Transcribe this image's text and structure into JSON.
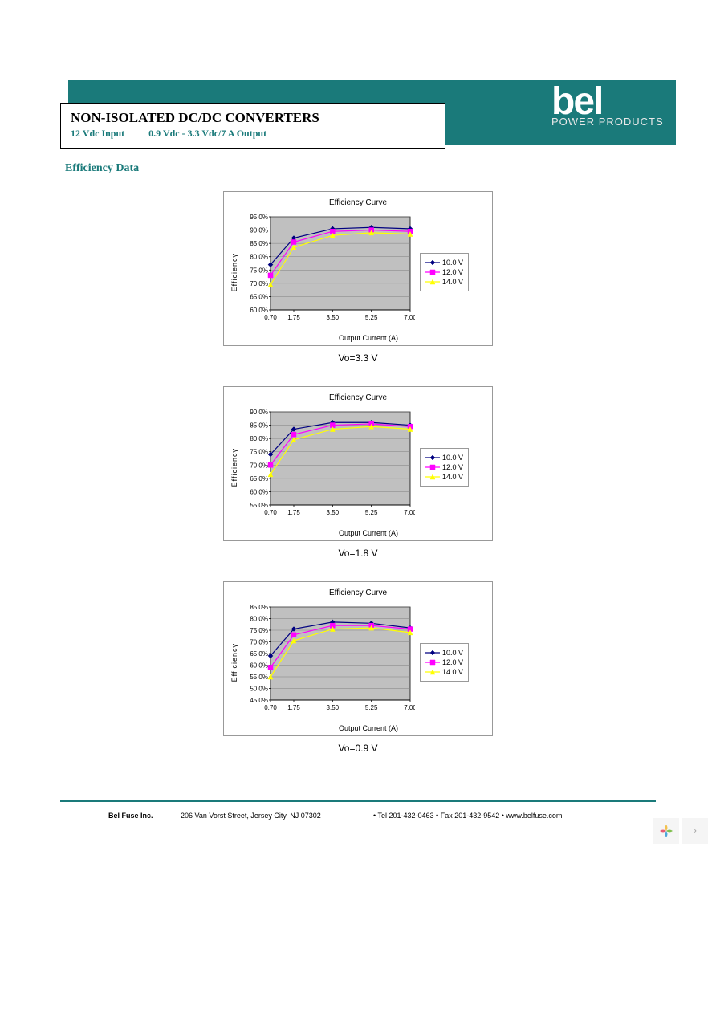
{
  "header": {
    "title": "NON-ISOLATED DC/DC CONVERTERS",
    "subtitle_left": "12 Vdc Input",
    "subtitle_right": "0.9 Vdc - 3.3 Vdc/7 A Output",
    "banner_color": "#1a7a7a",
    "logo_brand": "bel",
    "logo_tagline": "POWER PRODUCTS"
  },
  "section_heading": "Efficiency Data",
  "chart_common": {
    "title": "Efficiency Curve",
    "xlabel": "Output Current (A)",
    "ylabel": "Efficiency",
    "x_ticks": [
      "0.70",
      "1.75",
      "3.50",
      "5.25",
      "7.00"
    ],
    "x_values": [
      0.7,
      1.75,
      3.5,
      5.25,
      7.0
    ],
    "plot_bg": "#c0c0c0",
    "grid_color": "#808080",
    "axis_color": "#000000",
    "tick_fontsize": 8,
    "title_fontsize": 10,
    "legend": [
      {
        "label": "10.0 V",
        "color": "#000080",
        "line": "#000080",
        "marker": "diamond"
      },
      {
        "label": "12.0 V",
        "color": "#ff00ff",
        "line": "#ff00ff",
        "marker": "square"
      },
      {
        "label": "14.0 V",
        "color": "#ffff00",
        "line": "#ffff00",
        "marker": "triangle"
      }
    ]
  },
  "charts": [
    {
      "caption": "Vo=3.3 V",
      "ymin": 60,
      "ymax": 95,
      "ystep": 5,
      "y_ticks": [
        "60.0%",
        "65.0%",
        "70.0%",
        "75.0%",
        "80.0%",
        "85.0%",
        "90.0%",
        "95.0%"
      ],
      "series": [
        {
          "key": "10.0 V",
          "values": [
            77.0,
            87.0,
            90.5,
            91.0,
            90.5
          ]
        },
        {
          "key": "12.0 V",
          "values": [
            73.0,
            85.5,
            89.5,
            90.0,
            89.5
          ]
        },
        {
          "key": "14.0 V",
          "values": [
            69.5,
            83.5,
            88.0,
            89.0,
            88.5
          ]
        }
      ]
    },
    {
      "caption": "Vo=1.8 V",
      "ymin": 55,
      "ymax": 90,
      "ystep": 5,
      "y_ticks": [
        "55.0%",
        "60.0%",
        "65.0%",
        "70.0%",
        "75.0%",
        "80.0%",
        "85.0%",
        "90.0%"
      ],
      "series": [
        {
          "key": "10.0 V",
          "values": [
            74.0,
            83.5,
            86.0,
            86.0,
            85.0
          ]
        },
        {
          "key": "12.0 V",
          "values": [
            70.0,
            81.5,
            85.0,
            85.5,
            84.5
          ]
        },
        {
          "key": "14.0 V",
          "values": [
            66.5,
            79.5,
            83.5,
            84.5,
            83.5
          ]
        }
      ]
    },
    {
      "caption": "Vo=0.9 V",
      "ymin": 45,
      "ymax": 85,
      "ystep": 5,
      "y_ticks": [
        "45.0%",
        "50.0%",
        "55.0%",
        "60.0%",
        "65.0%",
        "70.0%",
        "75.0%",
        "80.0%",
        "85.0%"
      ],
      "series": [
        {
          "key": "10.0 V",
          "values": [
            64.0,
            75.5,
            78.5,
            78.0,
            76.0
          ]
        },
        {
          "key": "12.0 V",
          "values": [
            59.0,
            73.0,
            77.0,
            77.0,
            75.5
          ]
        },
        {
          "key": "14.0 V",
          "values": [
            55.0,
            70.5,
            75.5,
            76.0,
            74.0
          ]
        }
      ]
    }
  ],
  "footer": {
    "company": "Bel Fuse Inc.",
    "address": "206 Van Vorst Street, Jersey City, NJ 07302",
    "contact": "• Tel 201-432-0463 • Fax 201-432-9542 • www.belfuse.com"
  }
}
